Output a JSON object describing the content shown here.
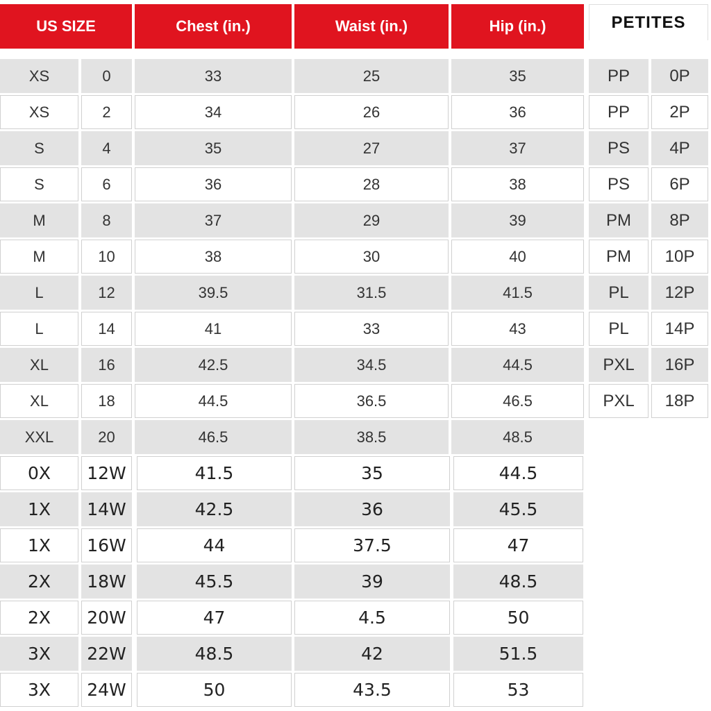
{
  "header": {
    "us_size": "US SIZE",
    "chest": "Chest (in.)",
    "waist": "Waist (in.)",
    "hip": "Hip (in.)",
    "petites": "PETITES"
  },
  "table": {
    "rows": [
      [
        "XS",
        "0",
        "33",
        "25",
        "35"
      ],
      [
        "XS",
        "2",
        "34",
        "26",
        "36"
      ],
      [
        "S",
        "4",
        "35",
        "27",
        "37"
      ],
      [
        "S",
        "6",
        "36",
        "28",
        "38"
      ],
      [
        "M",
        "8",
        "37",
        "29",
        "39"
      ],
      [
        "M",
        "10",
        "38",
        "30",
        "40"
      ],
      [
        "L",
        "12",
        "39.5",
        "31.5",
        "41.5"
      ],
      [
        "L",
        "14",
        "41",
        "33",
        "43"
      ],
      [
        "XL",
        "16",
        "42.5",
        "34.5",
        "44.5"
      ],
      [
        "XL",
        "18",
        "44.5",
        "36.5",
        "46.5"
      ],
      [
        "XXL",
        "20",
        "46.5",
        "38.5",
        "48.5"
      ],
      [
        "0X",
        "12W",
        "41.5",
        "35",
        "44.5"
      ],
      [
        "1X",
        "14W",
        "42.5",
        "36",
        "45.5"
      ],
      [
        "1X",
        "16W",
        "44",
        "37.5",
        "47"
      ],
      [
        "2X",
        "18W",
        "45.5",
        "39",
        "48.5"
      ],
      [
        "2X",
        "20W",
        "47",
        "4.5",
        "50"
      ],
      [
        "3X",
        "22W",
        "48.5",
        "42",
        "51.5"
      ],
      [
        "3X",
        "24W",
        "50",
        "43.5",
        "53"
      ]
    ]
  },
  "petites": {
    "rows": [
      [
        "PP",
        "0P"
      ],
      [
        "PP",
        "2P"
      ],
      [
        "PS",
        "4P"
      ],
      [
        "PS",
        "6P"
      ],
      [
        "PM",
        "8P"
      ],
      [
        "PM",
        "10P"
      ],
      [
        "PL",
        "12P"
      ],
      [
        "PL",
        "14P"
      ],
      [
        "PXL",
        "16P"
      ],
      [
        "PXL",
        "18P"
      ]
    ]
  }
}
